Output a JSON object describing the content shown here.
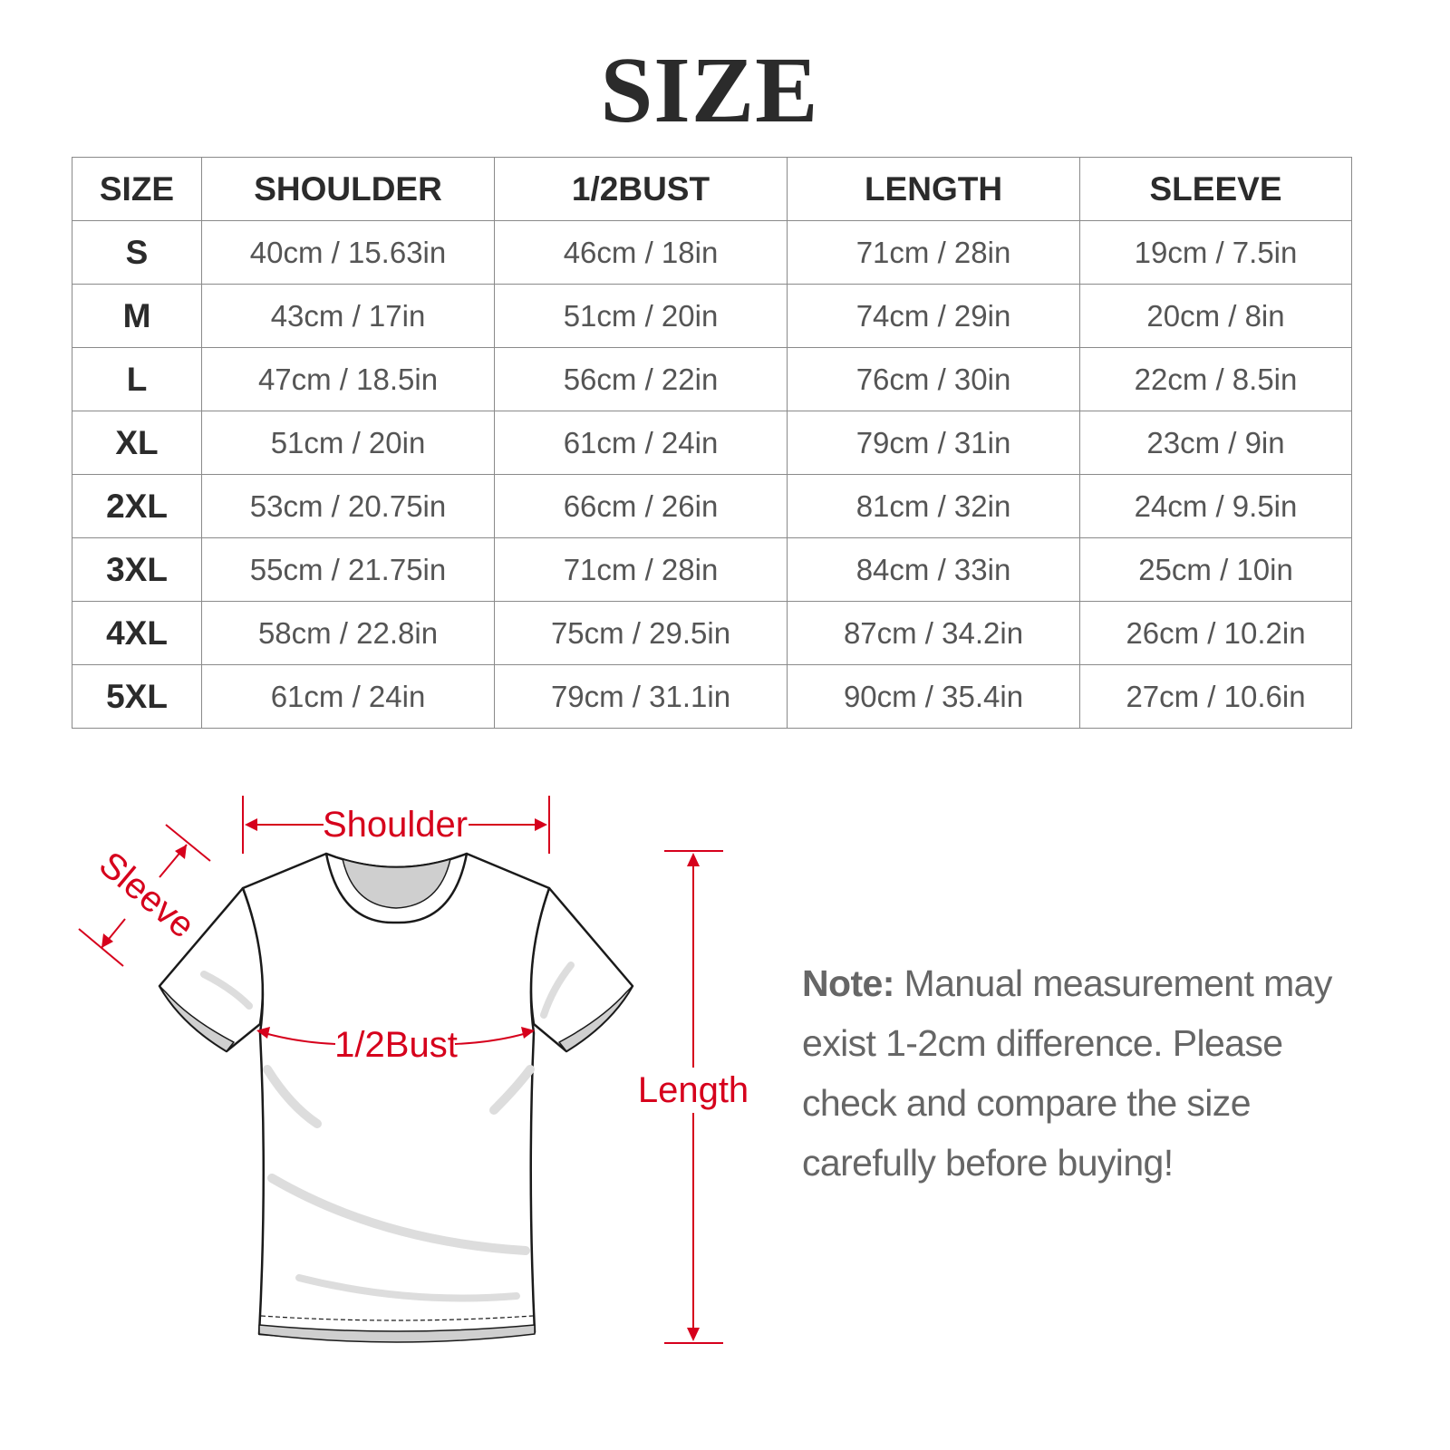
{
  "title": "SIZE",
  "table": {
    "headers": [
      "SIZE",
      "SHOULDER",
      "1/2BUST",
      "LENGTH",
      "SLEEVE"
    ],
    "rows": [
      [
        "S",
        "40cm / 15.63in",
        "46cm / 18in",
        "71cm / 28in",
        "19cm / 7.5in"
      ],
      [
        "M",
        "43cm / 17in",
        "51cm / 20in",
        "74cm / 29in",
        "20cm / 8in"
      ],
      [
        "L",
        "47cm / 18.5in",
        "56cm / 22in",
        "76cm / 30in",
        "22cm / 8.5in"
      ],
      [
        "XL",
        "51cm / 20in",
        "61cm / 24in",
        "79cm / 31in",
        "23cm / 9in"
      ],
      [
        "2XL",
        "53cm / 20.75in",
        "66cm / 26in",
        "81cm / 32in",
        "24cm / 9.5in"
      ],
      [
        "3XL",
        "55cm / 21.75in",
        "71cm / 28in",
        "84cm / 33in",
        "25cm / 10in"
      ],
      [
        "4XL",
        "58cm / 22.8in",
        "75cm / 29.5in",
        "87cm / 34.2in",
        "26cm / 10.2in"
      ],
      [
        "5XL",
        "61cm / 24in",
        "79cm / 31.1in",
        "90cm / 35.4in",
        "27cm / 10.6in"
      ]
    ]
  },
  "diagram": {
    "shoulder": "Shoulder",
    "sleeve": "Sleeve",
    "bust": "1/2Bust",
    "length": "Length",
    "accent_color": "#d6001c"
  },
  "note": {
    "label": "Note:",
    "text": " Manual measurement may exist 1-2cm difference. Please check and compare the size carefully before buying!"
  }
}
